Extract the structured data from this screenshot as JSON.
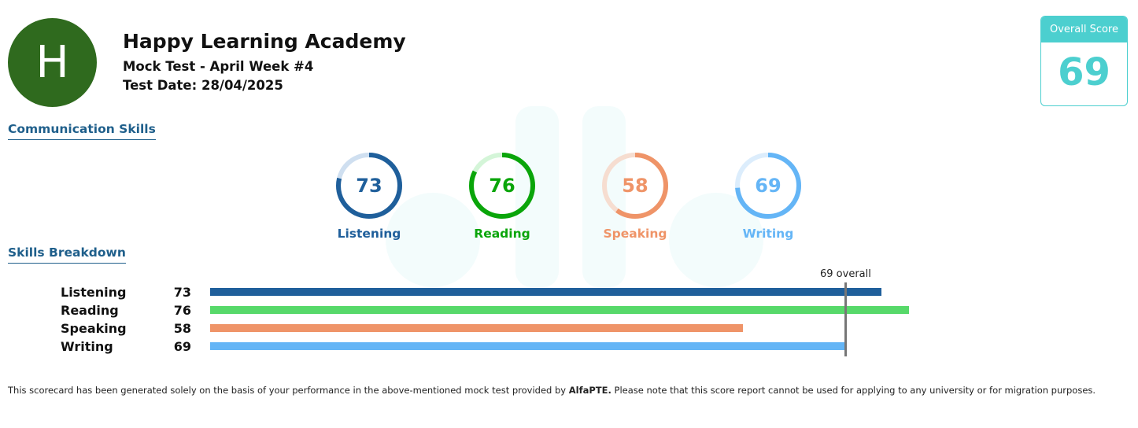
{
  "header": {
    "avatar_letter": "H",
    "org_name": "Happy Learning Academy",
    "test_name": "Mock Test - April Week #4",
    "test_date": "Test Date: 28/04/2025"
  },
  "overall": {
    "label": "Overall Score",
    "value": "69",
    "color": "#4ccfcf"
  },
  "sections": {
    "communication": "Communication Skills",
    "breakdown": "Skills Breakdown"
  },
  "skills": [
    {
      "name": "Listening",
      "score": "73",
      "color": "#1f5f9b",
      "track": "#cfdff0"
    },
    {
      "name": "Reading",
      "score": "76",
      "color": "#0aa50a",
      "track": "#d4f5d8"
    },
    {
      "name": "Speaking",
      "score": "58",
      "color": "#ef9468",
      "track": "#f6ddd0"
    },
    {
      "name": "Writing",
      "score": "69",
      "color": "#64b5f6",
      "track": "#dcedfc"
    }
  ],
  "breakdown_colors": [
    "#1f5f9b",
    "#57d96a",
    "#ef9468",
    "#64b5f6"
  ],
  "overall_marker": {
    "label": "69 overall",
    "value": 69
  },
  "scale": {
    "min": 10,
    "max": 90
  },
  "footer": {
    "text_before": "This scorecard has been generated solely on the basis of your performance in the above-mentioned mock test provided by ",
    "brand": "AlfaPTE.",
    "text_after": " Please note that this score report cannot be used for applying to any university or for migration purposes."
  }
}
